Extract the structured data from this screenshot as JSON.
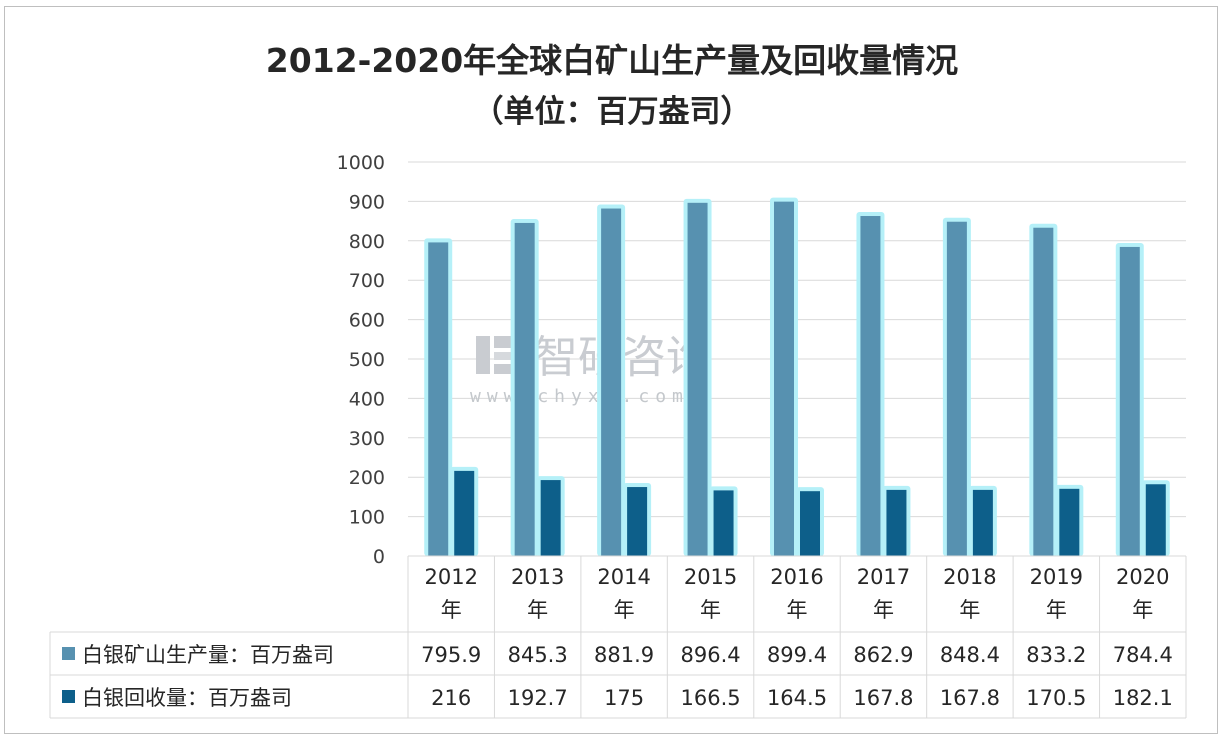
{
  "chart_data": {
    "type": "bar",
    "title": "2012-2020年全球白矿山生产量及回收量情况",
    "subtitle": "（单位：百万盎司）",
    "categories": [
      "2012\n年",
      "2013\n年",
      "2014\n年",
      "2015\n年",
      "2016\n年",
      "2017\n年",
      "2018\n年",
      "2019\n年",
      "2020\n年"
    ],
    "ylim": [
      0,
      1000
    ],
    "yticks": [
      0,
      100,
      200,
      300,
      400,
      500,
      600,
      700,
      800,
      900,
      1000
    ],
    "grid": true,
    "legend": "data-table",
    "series": [
      {
        "name": "白银矿山生产量：百万盎司",
        "values": [
          795.9,
          845.3,
          881.9,
          896.4,
          899.4,
          862.9,
          848.4,
          833.2,
          784.4
        ],
        "labels": [
          "795.9",
          "845.3",
          "881.9",
          "896.4",
          "899.4",
          "862.9",
          "848.4",
          "833.2",
          "784.4"
        ],
        "color": "#5791b0"
      },
      {
        "name": "白银回收量：百万盎司",
        "values": [
          216,
          192.7,
          175,
          166.5,
          164.5,
          167.8,
          167.8,
          170.5,
          182.1
        ],
        "labels": [
          "216",
          "192.7",
          "175",
          "166.5",
          "164.5",
          "167.8",
          "167.8",
          "170.5",
          "182.1"
        ],
        "color": "#0d5f8a"
      }
    ]
  },
  "watermark": {
    "brand": "智研咨询",
    "url": "www.chyxx.com"
  },
  "colors": {
    "glow": "#b5f0f8",
    "grid": "#d9d9d9"
  }
}
